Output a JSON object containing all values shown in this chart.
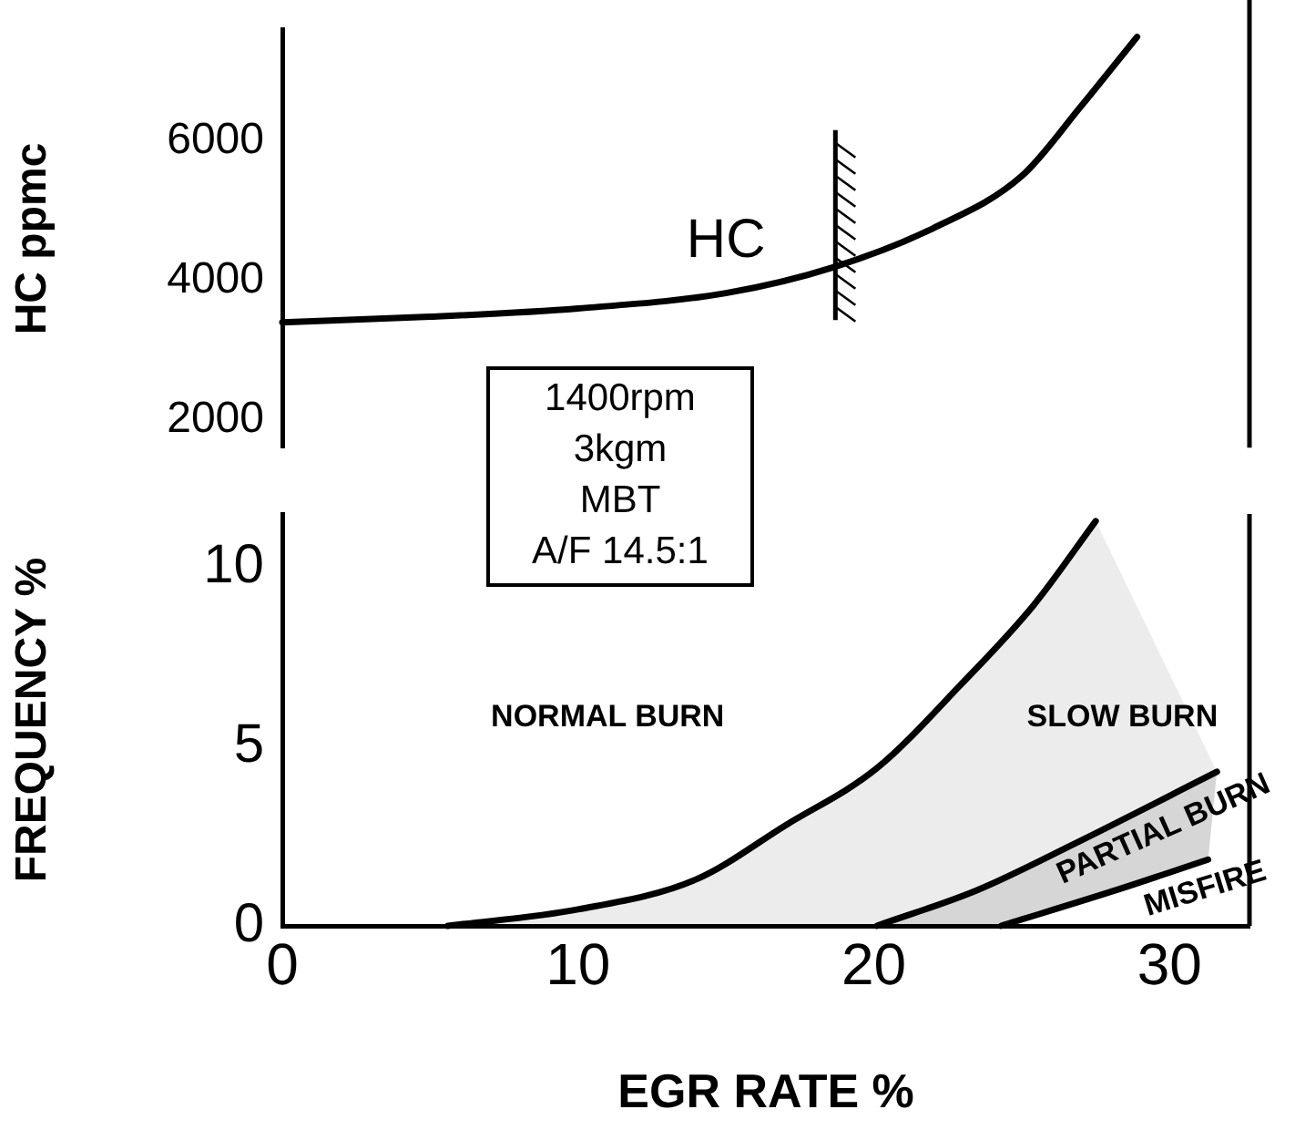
{
  "chart_data": [
    {
      "type": "line",
      "ylabel": "HC ppmc",
      "xlim": [
        0,
        32.7
      ],
      "xticks": [
        0,
        10,
        20,
        30
      ],
      "ylim": [
        1600,
        7600
      ],
      "yticks": [
        2000,
        4000,
        6000
      ],
      "tick_labels": "y",
      "grid": false,
      "marker": "none",
      "line_style": "solid",
      "series": [
        {
          "name": "HC",
          "color": "#000000",
          "x": [
            0,
            5,
            10,
            15,
            18.7,
            22,
            25,
            27,
            28.9
          ],
          "values": [
            3400,
            3480,
            3600,
            3820,
            4200,
            4750,
            5500,
            6500,
            7500
          ]
        }
      ],
      "ref_lines": [
        {
          "axis": "x",
          "value": 18.7,
          "color": "#000000"
        }
      ],
      "annotations": [
        "1400rpm",
        "3kgm",
        "MBT",
        "A/F 14.5:1"
      ]
    },
    {
      "type": "line",
      "ylabel": "FREQUENCY %",
      "xlabel": "EGR RATE %",
      "xlim": [
        0,
        32.7
      ],
      "xticks": [
        0,
        10,
        20,
        30
      ],
      "ylim": [
        0,
        11.5
      ],
      "yticks": [
        0,
        5,
        10
      ],
      "grid": false,
      "legend": false,
      "marker": "none",
      "line_style": "solid",
      "series": [
        {
          "color": "#000000",
          "x": [
            5.6,
            10,
            14,
            17,
            20.1,
            22.9,
            25.4,
            27.5
          ],
          "values": [
            0,
            0.46,
            1.3,
            2.8,
            4.4,
            6.7,
            8.95,
            11.3
          ]
        },
        {
          "color": "#000000",
          "x": [
            20.1,
            23.5,
            26.8,
            31.6
          ],
          "values": [
            0,
            1,
            2.3,
            4.3
          ]
        },
        {
          "color": "#000000",
          "x": [
            24.3,
            28.2,
            31.3
          ],
          "values": [
            0,
            1,
            1.85
          ]
        }
      ],
      "annotations": [
        "NORMAL BURN",
        "SLOW BURN",
        {
          "text": "PARTIAL BURN",
          "x": 29.2,
          "y": 3.3
        },
        {
          "text": "MISFIRE",
          "x": 30.7,
          "y": 1.69
        }
      ]
    }
  ]
}
